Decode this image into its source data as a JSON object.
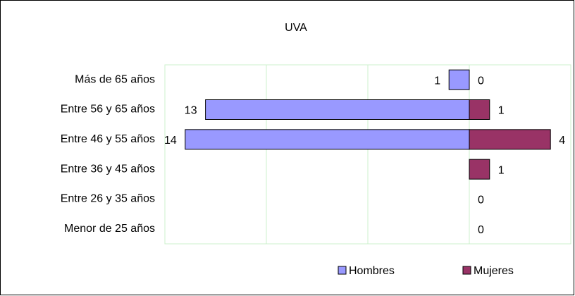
{
  "chart_data": {
    "type": "pyramid",
    "title": "UVA",
    "categories": [
      "Más de 65 años",
      "Entre 56 y 65 años",
      "Entre 46 y 55 años",
      "Entre 36 y 45 años",
      "Entre 26 y 35 años",
      "Menor de 25 años"
    ],
    "series": [
      {
        "name": "Hombres",
        "color": "#9999ff",
        "values": [
          1,
          13,
          14,
          null,
          null,
          null
        ]
      },
      {
        "name": "Mujeres",
        "color": "#993366",
        "values": [
          0,
          1,
          4,
          1,
          0,
          0
        ]
      }
    ],
    "xlim": [
      -15,
      5
    ],
    "xticks": [
      -15,
      -10,
      -5,
      0,
      5
    ],
    "grid": true,
    "legend": "bottom"
  }
}
